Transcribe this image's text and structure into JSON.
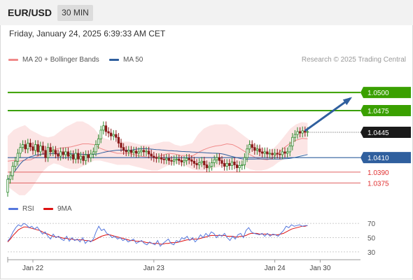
{
  "header": {
    "symbol": "EUR/USD",
    "timeframe": "30 MIN"
  },
  "datetime": "Friday, January 24, 2025 6:39:33 AM CET",
  "legend": {
    "ma20_label": "MA 20 + Bollinger Bands",
    "ma20_color": "#f08a8a",
    "ma50_label": "MA 50",
    "ma50_color": "#2f5f9e",
    "rsi_label": "RSI",
    "rsi_color": "#5577dd",
    "ma9_label": "9MA",
    "ma9_color": "#dd1111"
  },
  "credit": "Research © 2025 Trading Central",
  "chart_data": {
    "type": "candlestick",
    "y_range": [
      1.0355,
      1.0535
    ],
    "x_ticks": [
      {
        "label": "Jan 22",
        "index": 10
      },
      {
        "label": "Jan 23",
        "index": 58
      },
      {
        "label": "Jan 24",
        "index": 106
      },
      {
        "label": "Jan 30",
        "index": 124
      }
    ],
    "colors": {
      "up": "#2e8b2e",
      "down": "#8b1a1a",
      "green_level": "#3aa000",
      "red_level": "#e06060",
      "blue_level": "#2f5f9e",
      "arrow": "#2f5f9e"
    },
    "levels": [
      {
        "value": 1.05,
        "label": "1.0500",
        "style": "green-line"
      },
      {
        "value": 1.0475,
        "label": "1.0475",
        "style": "green-line"
      },
      {
        "value": 1.0445,
        "label": "1.0445",
        "style": "current"
      },
      {
        "value": 1.041,
        "label": "1.0410",
        "style": "blue-line"
      },
      {
        "value": 1.039,
        "label": "1.0390",
        "style": "red-line"
      },
      {
        "value": 1.0375,
        "label": "1.0375",
        "style": "red-line"
      }
    ],
    "arrow": {
      "from": {
        "index": 118,
        "value": 1.0447
      },
      "to": {
        "index": 136,
        "value": 1.0492
      }
    },
    "ohlc_profile": [
      [
        1.0362,
        1.038
      ],
      [
        1.038,
        1.0385
      ],
      [
        1.0385,
        1.0398
      ],
      [
        1.0398,
        1.0405
      ],
      [
        1.0405,
        1.0416
      ],
      [
        1.0416,
        1.0424
      ],
      [
        1.0424,
        1.0428
      ],
      [
        1.0428,
        1.0422
      ],
      [
        1.0422,
        1.043
      ],
      [
        1.043,
        1.0425
      ],
      [
        1.0425,
        1.042
      ],
      [
        1.042,
        1.0428
      ],
      [
        1.0428,
        1.0418
      ],
      [
        1.0418,
        1.0426
      ],
      [
        1.0426,
        1.042
      ],
      [
        1.042,
        1.041
      ],
      [
        1.041,
        1.0424
      ],
      [
        1.0424,
        1.0418
      ],
      [
        1.0418,
        1.042
      ],
      [
        1.042,
        1.0415
      ],
      [
        1.0415,
        1.0412
      ],
      [
        1.0412,
        1.0418
      ],
      [
        1.0418,
        1.0414
      ],
      [
        1.0414,
        1.0418
      ],
      [
        1.0418,
        1.0412
      ],
      [
        1.0412,
        1.0414
      ],
      [
        1.0414,
        1.0408
      ],
      [
        1.0408,
        1.0416
      ],
      [
        1.0416,
        1.0408
      ],
      [
        1.0408,
        1.0412
      ],
      [
        1.0412,
        1.0406
      ],
      [
        1.0406,
        1.0414
      ],
      [
        1.0414,
        1.041
      ],
      [
        1.041,
        1.0415
      ],
      [
        1.0415,
        1.0418
      ],
      [
        1.0418,
        1.0428
      ],
      [
        1.0428,
        1.0436
      ],
      [
        1.0436,
        1.0448
      ],
      [
        1.0448,
        1.0454
      ],
      [
        1.0454,
        1.0446
      ],
      [
        1.0446,
        1.0444
      ],
      [
        1.0444,
        1.044
      ],
      [
        1.044,
        1.0442
      ],
      [
        1.0442,
        1.0438
      ],
      [
        1.0438,
        1.043
      ],
      [
        1.043,
        1.0424
      ],
      [
        1.0424,
        1.042
      ],
      [
        1.042,
        1.0418
      ],
      [
        1.0418,
        1.042
      ],
      [
        1.042,
        1.0417
      ],
      [
        1.0417,
        1.0419
      ],
      [
        1.0419,
        1.0416
      ],
      [
        1.0416,
        1.0418
      ],
      [
        1.0418,
        1.042
      ],
      [
        1.042,
        1.0418
      ],
      [
        1.0418,
        1.0419
      ],
      [
        1.0419,
        1.0415
      ],
      [
        1.0415,
        1.0412
      ],
      [
        1.0412,
        1.041
      ],
      [
        1.041,
        1.0409
      ],
      [
        1.0409,
        1.041
      ],
      [
        1.041,
        1.0408
      ],
      [
        1.0408,
        1.0407
      ],
      [
        1.0407,
        1.0409
      ],
      [
        1.0409,
        1.0406
      ],
      [
        1.0406,
        1.0405
      ],
      [
        1.0405,
        1.0407
      ],
      [
        1.0407,
        1.0408
      ],
      [
        1.0408,
        1.0406
      ],
      [
        1.0406,
        1.0404
      ],
      [
        1.0404,
        1.0406
      ],
      [
        1.0406,
        1.0409
      ],
      [
        1.0409,
        1.0407
      ],
      [
        1.0407,
        1.0405
      ],
      [
        1.0405,
        1.0402
      ],
      [
        1.0402,
        1.04
      ],
      [
        1.04,
        1.0403
      ],
      [
        1.0403,
        1.0405
      ],
      [
        1.0405,
        1.04
      ],
      [
        1.04,
        1.0396
      ],
      [
        1.0396,
        1.0398
      ],
      [
        1.0398,
        1.0403
      ],
      [
        1.0403,
        1.0407
      ],
      [
        1.0407,
        1.041
      ],
      [
        1.041,
        1.0406
      ],
      [
        1.0406,
        1.0402
      ],
      [
        1.0402,
        1.0398
      ],
      [
        1.0398,
        1.0402
      ],
      [
        1.0402,
        1.0399
      ],
      [
        1.0399,
        1.0404
      ],
      [
        1.0404,
        1.04
      ],
      [
        1.04,
        1.0396
      ],
      [
        1.0396,
        1.0399
      ],
      [
        1.0399,
        1.04
      ],
      [
        1.04,
        1.041
      ],
      [
        1.041,
        1.0422
      ],
      [
        1.0422,
        1.0428
      ],
      [
        1.0428,
        1.0424
      ],
      [
        1.0424,
        1.042
      ],
      [
        1.042,
        1.0422
      ],
      [
        1.0422,
        1.0418
      ],
      [
        1.0418,
        1.0416
      ],
      [
        1.0416,
        1.0418
      ],
      [
        1.0418,
        1.0415
      ],
      [
        1.0415,
        1.0416
      ],
      [
        1.0416,
        1.0414
      ],
      [
        1.0414,
        1.0416
      ],
      [
        1.0416,
        1.0415
      ],
      [
        1.0415,
        1.0414
      ],
      [
        1.0414,
        1.0418
      ],
      [
        1.0418,
        1.0416
      ],
      [
        1.0416,
        1.0418
      ],
      [
        1.0418,
        1.0426
      ],
      [
        1.0426,
        1.0438
      ],
      [
        1.0438,
        1.0442
      ],
      [
        1.0442,
        1.0446
      ],
      [
        1.0446,
        1.0444
      ],
      [
        1.0444,
        1.0447
      ],
      [
        1.0447,
        1.0445
      ],
      [
        1.0445,
        1.0446
      ]
    ],
    "bollinger": {
      "upper": [
        1.044,
        1.0448,
        1.0452,
        1.0455,
        1.0448,
        1.0444,
        1.044,
        1.0438,
        1.044,
        1.0446,
        1.0452,
        1.0456,
        1.046,
        1.046,
        1.0456,
        1.045,
        1.044,
        1.0436,
        1.0434,
        1.0432,
        1.0432,
        1.0432,
        1.043,
        1.0428,
        1.0428,
        1.0428,
        1.043,
        1.0432,
        1.0432,
        1.0428,
        1.0426,
        1.0428,
        1.043,
        1.0442,
        1.045,
        1.0454,
        1.0456,
        1.0456,
        1.0456,
        1.0452,
        1.0446,
        1.044,
        1.0434,
        1.0428,
        1.0424,
        1.042,
        1.0422,
        1.043,
        1.044,
        1.045,
        1.0456,
        1.0459,
        1.0458
      ],
      "lower": [
        1.037,
        1.0364,
        1.0358,
        1.0358,
        1.0366,
        1.0378,
        1.039,
        1.0398,
        1.0402,
        1.04,
        1.0396,
        1.0394,
        1.0394,
        1.0398,
        1.0402,
        1.0406,
        1.0406,
        1.0404,
        1.0402,
        1.04,
        1.04,
        1.04,
        1.0398,
        1.0396,
        1.0394,
        1.0392,
        1.0392,
        1.0396,
        1.04,
        1.0402,
        1.04,
        1.0398,
        1.0394,
        1.0392,
        1.0392,
        1.0394,
        1.0396,
        1.0398,
        1.0402,
        1.0404,
        1.0402,
        1.0398,
        1.0394,
        1.0392,
        1.0392,
        1.0394,
        1.0398,
        1.0404,
        1.0408,
        1.041,
        1.0412,
        1.0414,
        1.0414
      ]
    },
    "rsi_panel": {
      "y_range": [
        25,
        75
      ],
      "ticks": [
        70,
        50,
        30
      ],
      "rsi": [
        45,
        50,
        58,
        64,
        68,
        66,
        70,
        68,
        64,
        66,
        62,
        65,
        60,
        55,
        58,
        52,
        48,
        55,
        50,
        52,
        48,
        46,
        52,
        45,
        50,
        46,
        48,
        44,
        50,
        42,
        46,
        44,
        48,
        58,
        66,
        60,
        62,
        56,
        54,
        50,
        52,
        48,
        50,
        46,
        48,
        44,
        46,
        48,
        42,
        44,
        46,
        42,
        40,
        44,
        42,
        40,
        46,
        38,
        42,
        45,
        48,
        42,
        40,
        46,
        44,
        50,
        48,
        52,
        46,
        50,
        44,
        48,
        54,
        50,
        56,
        52,
        58,
        56,
        50,
        54,
        52,
        56,
        50,
        46,
        52,
        48,
        54,
        56,
        50,
        60,
        64,
        58,
        56,
        55,
        54,
        56,
        52,
        56,
        52,
        55,
        54,
        52,
        56,
        60,
        66,
        64,
        68,
        66,
        67,
        68,
        66,
        67,
        67
      ],
      "ma9": [
        44,
        48,
        53,
        57,
        61,
        63,
        65,
        65,
        64,
        63,
        62,
        61,
        60,
        58,
        56,
        55,
        53,
        52,
        51,
        51,
        50,
        49,
        49,
        48,
        48,
        47,
        47,
        47,
        47,
        46,
        46,
        45,
        46,
        48,
        50,
        52,
        53,
        54,
        54,
        53,
        52,
        51,
        50,
        49,
        48,
        47,
        46,
        46,
        45,
        45,
        45,
        44,
        43,
        43,
        42,
        42,
        42,
        41,
        41,
        42,
        42,
        43,
        43,
        43,
        44,
        45,
        46,
        47,
        47,
        48,
        48,
        48,
        49,
        50,
        51,
        52,
        53,
        53,
        53,
        53,
        53,
        53,
        52,
        52,
        52,
        51,
        51,
        52,
        52,
        53,
        55,
        56,
        56,
        56,
        55,
        55,
        55,
        55,
        54,
        54,
        54,
        54,
        55,
        56,
        58,
        60,
        62,
        63,
        64,
        65,
        66,
        66,
        67
      ]
    }
  }
}
